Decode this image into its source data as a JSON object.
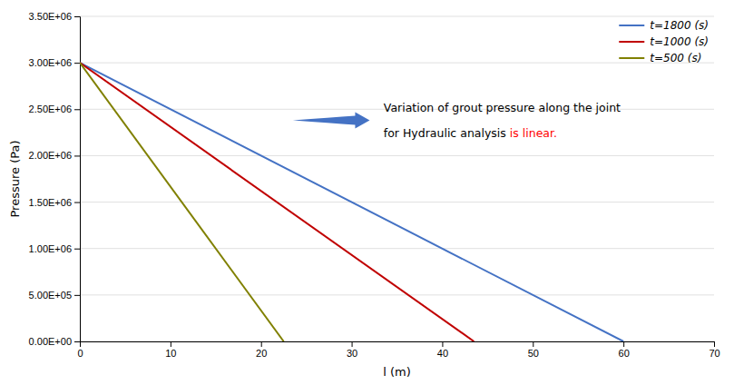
{
  "chart_data": {
    "type": "line",
    "xlabel": "l (m)",
    "ylabel": "Pressure (Pa)",
    "series": [
      {
        "name": "t=1800 (s)",
        "color": "#4472C4",
        "x": [
          0.0,
          60.0
        ],
        "values": [
          3000000.0,
          0.0
        ]
      },
      {
        "name": "t=1000 (s)",
        "color": "#C00000",
        "x": [
          0.0,
          43.5
        ],
        "values": [
          3000000.0,
          0.0
        ]
      },
      {
        "name": "t=500 (s)",
        "color": "#808000",
        "x": [
          0.0,
          22.5
        ],
        "values": [
          3000000.0,
          0.0
        ]
      }
    ],
    "xlim": [
      0,
      70
    ],
    "ylim": [
      0,
      3500000
    ],
    "xticks": [
      0,
      10,
      20,
      30,
      40,
      50,
      60,
      70
    ],
    "yticks": [
      {
        "value": 0,
        "label": "0.00E+00"
      },
      {
        "value": 500000,
        "label": "5.00E+05"
      },
      {
        "value": 1000000,
        "label": "1.00E+06"
      },
      {
        "value": 1500000,
        "label": "1.50E+06"
      },
      {
        "value": 2000000,
        "label": "2.00E+06"
      },
      {
        "value": 2500000,
        "label": "2.50E+06"
      },
      {
        "value": 3000000,
        "label": "3.00E+06"
      },
      {
        "value": 3500000,
        "label": "3.50E+06"
      }
    ],
    "grid": "y",
    "legend": "upper right",
    "annotations": [
      {
        "text": "Variation of grout pressure along the joint",
        "color": "black"
      },
      {
        "text": "for Hydraulic analysis ",
        "color": "black"
      },
      {
        "text": "is linear.",
        "color": "red"
      }
    ]
  }
}
